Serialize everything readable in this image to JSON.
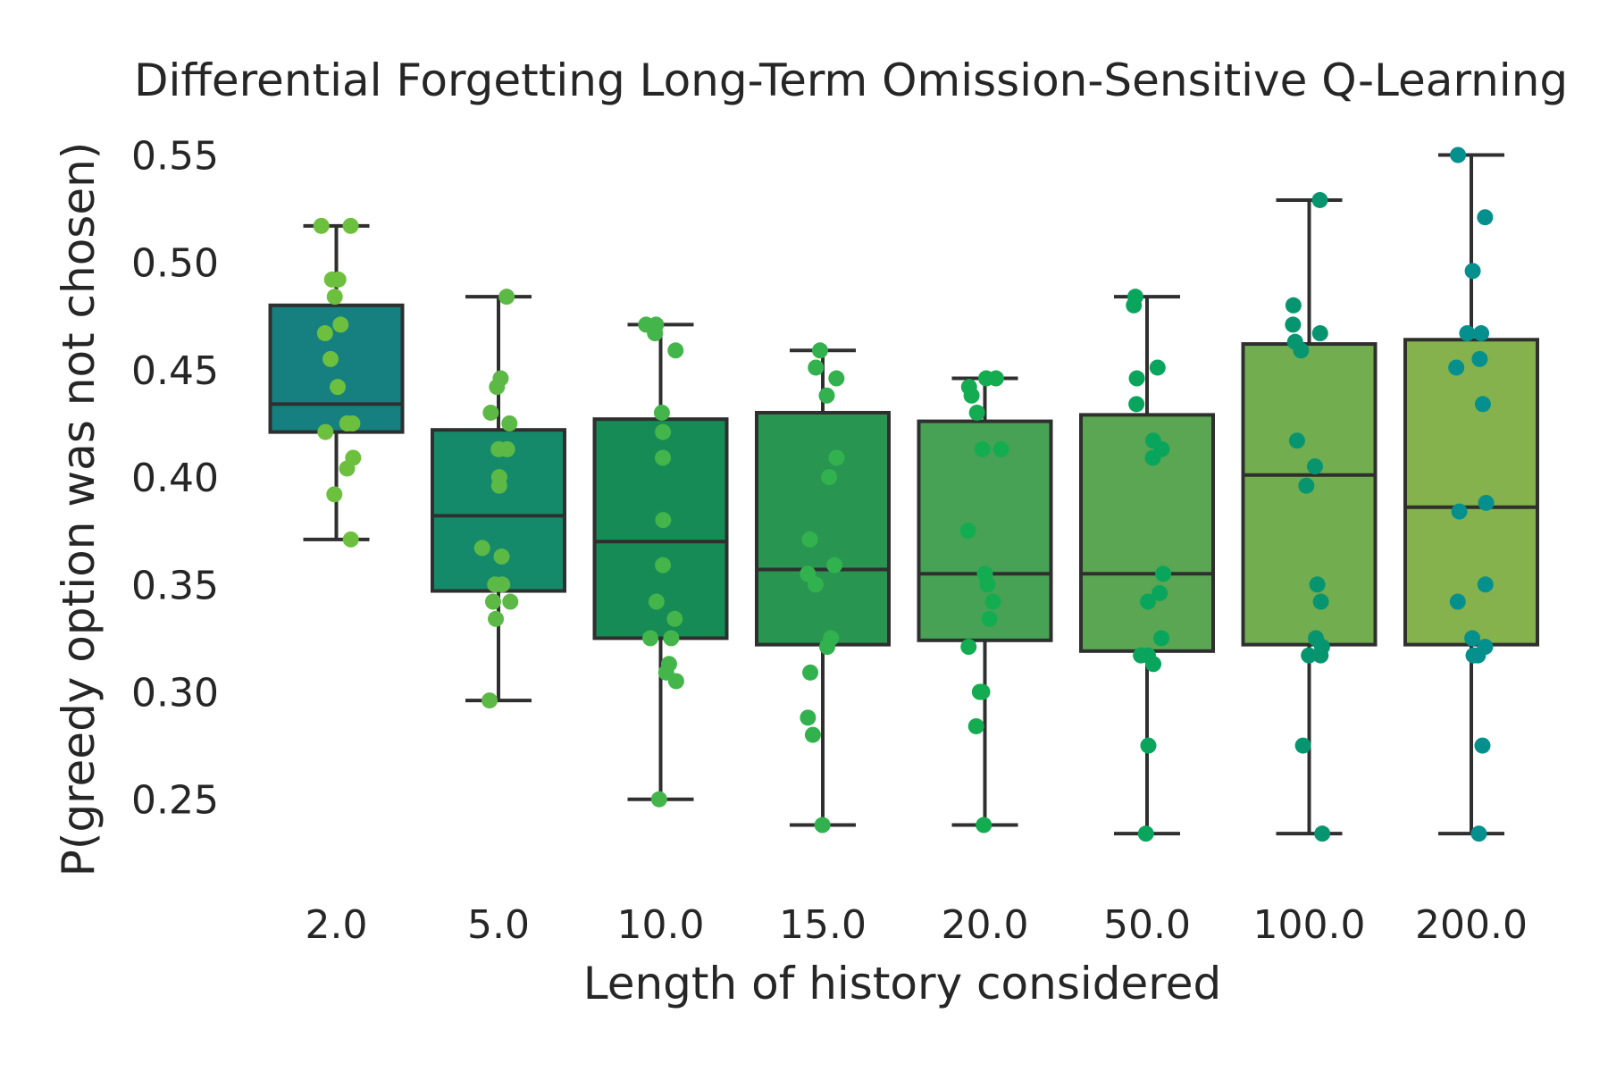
{
  "chart_data": {
    "type": "box",
    "title": "Differential Forgetting Long-Term Omission-Sensitive Q-Learning",
    "xlabel": "Length of history considered",
    "ylabel": "P(greedy option was not chosen)",
    "ylim": [
      0.21,
      0.56
    ],
    "yticks": [
      0.25,
      0.3,
      0.35,
      0.4,
      0.45,
      0.5,
      0.55
    ],
    "ytick_labels": [
      "0.25",
      "0.30",
      "0.35",
      "0.40",
      "0.45",
      "0.50",
      "0.55"
    ],
    "grid": false,
    "categories": [
      "2.0",
      "5.0",
      "10.0",
      "15.0",
      "20.0",
      "50.0",
      "100.0",
      "200.0"
    ],
    "boxes": [
      {
        "category": "2.0",
        "whisker_low": 0.371,
        "q1": 0.421,
        "median": 0.434,
        "q3": 0.48,
        "whisker_high": 0.517,
        "color": "#167f80",
        "points": [
          0.517,
          0.517,
          0.492,
          0.492,
          0.484,
          0.471,
          0.467,
          0.455,
          0.442,
          0.425,
          0.425,
          0.421,
          0.409,
          0.404,
          0.392,
          0.371
        ]
      },
      {
        "category": "5.0",
        "whisker_low": 0.296,
        "q1": 0.347,
        "median": 0.382,
        "q3": 0.422,
        "whisker_high": 0.484,
        "color": "#158a6a",
        "points": [
          0.484,
          0.446,
          0.442,
          0.43,
          0.425,
          0.413,
          0.413,
          0.4,
          0.396,
          0.367,
          0.363,
          0.35,
          0.35,
          0.342,
          0.342,
          0.334,
          0.296
        ]
      },
      {
        "category": "10.0",
        "whisker_low": 0.25,
        "q1": 0.325,
        "median": 0.37,
        "q3": 0.427,
        "whisker_high": 0.471,
        "color": "#168b55",
        "points": [
          0.471,
          0.471,
          0.467,
          0.459,
          0.43,
          0.421,
          0.409,
          0.38,
          0.359,
          0.342,
          0.334,
          0.325,
          0.325,
          0.313,
          0.309,
          0.305,
          0.25
        ]
      },
      {
        "category": "15.0",
        "whisker_low": 0.238,
        "q1": 0.322,
        "median": 0.357,
        "q3": 0.43,
        "whisker_high": 0.459,
        "color": "#289650",
        "points": [
          0.459,
          0.451,
          0.446,
          0.438,
          0.409,
          0.4,
          0.371,
          0.359,
          0.355,
          0.35,
          0.325,
          0.321,
          0.309,
          0.288,
          0.28,
          0.238
        ]
      },
      {
        "category": "20.0",
        "whisker_low": 0.238,
        "q1": 0.324,
        "median": 0.355,
        "q3": 0.426,
        "whisker_high": 0.446,
        "color": "#47a256",
        "points": [
          0.446,
          0.446,
          0.442,
          0.438,
          0.43,
          0.413,
          0.413,
          0.375,
          0.355,
          0.35,
          0.342,
          0.334,
          0.321,
          0.3,
          0.3,
          0.284,
          0.238
        ]
      },
      {
        "category": "50.0",
        "whisker_low": 0.234,
        "q1": 0.319,
        "median": 0.355,
        "q3": 0.429,
        "whisker_high": 0.484,
        "color": "#5ba653",
        "points": [
          0.484,
          0.48,
          0.451,
          0.446,
          0.434,
          0.417,
          0.413,
          0.409,
          0.355,
          0.346,
          0.342,
          0.325,
          0.317,
          0.317,
          0.313,
          0.275,
          0.234
        ]
      },
      {
        "category": "100.0",
        "whisker_low": 0.234,
        "q1": 0.322,
        "median": 0.401,
        "q3": 0.462,
        "whisker_high": 0.529,
        "color": "#72ad50",
        "points": [
          0.529,
          0.48,
          0.471,
          0.467,
          0.463,
          0.459,
          0.417,
          0.405,
          0.396,
          0.35,
          0.342,
          0.325,
          0.321,
          0.317,
          0.317,
          0.275,
          0.234
        ]
      },
      {
        "category": "200.0",
        "whisker_low": 0.234,
        "q1": 0.322,
        "median": 0.386,
        "q3": 0.464,
        "whisker_high": 0.55,
        "color": "#85b24c",
        "points": [
          0.55,
          0.521,
          0.496,
          0.467,
          0.467,
          0.455,
          0.451,
          0.434,
          0.388,
          0.384,
          0.35,
          0.342,
          0.325,
          0.321,
          0.317,
          0.317,
          0.275,
          0.234
        ]
      }
    ],
    "point_colors": [
      "#6dbf3e",
      "#5cb946",
      "#43b54a",
      "#32b24e",
      "#14ac50",
      "#0aa55c",
      "#07956f",
      "#06908d"
    ]
  }
}
